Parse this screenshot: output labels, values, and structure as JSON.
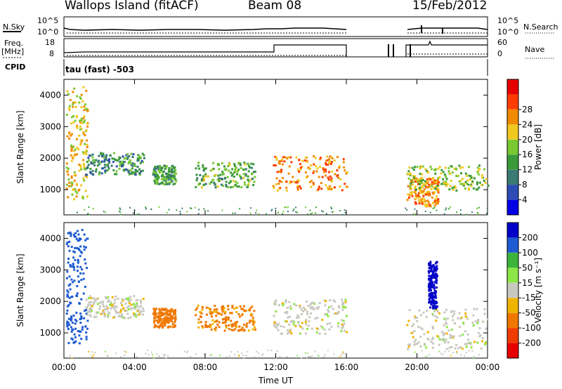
{
  "header": {
    "title": "Wallops Island (fitACF)",
    "beam": "Beam 08",
    "date": "15/Feb/2012"
  },
  "aux": {
    "nsky_label": "N.Sky",
    "nsearch_label": "N.Search",
    "freq_label": "Freq.",
    "freq_unit": "[MHz]",
    "nave_label": "Nave",
    "cpid_label": "CPID",
    "cpid_value": "tau (fast) -503",
    "noise_ticks": [
      "10^5",
      "10^0"
    ],
    "freq_ticks": [
      "18",
      "8"
    ],
    "nave_ticks": [
      "60",
      "0"
    ]
  },
  "chart_data": [
    {
      "type": "heatmap",
      "name": "power",
      "ylabel": "Slant Range [km]",
      "ylim": [
        200,
        4500
      ],
      "yticks": [
        1000,
        2000,
        3000,
        4000
      ],
      "colorbar": {
        "label": "Power [dB]",
        "ticks": [
          "4",
          "8",
          "12",
          "16",
          "20",
          "24",
          "28"
        ],
        "colors": [
          "#0000e6",
          "#2d4cb5",
          "#3a7a73",
          "#3a9a3a",
          "#7ac832",
          "#f0c820",
          "#f08a00",
          "#ff3c00",
          "#e60000"
        ]
      },
      "regions": [
        {
          "t0": 0.1,
          "t1": 1.3,
          "r0": 700,
          "r1": 4300,
          "value": "22"
        },
        {
          "t0": 1.2,
          "t1": 4.5,
          "r0": 1500,
          "r1": 2200,
          "value": "12"
        },
        {
          "t0": 5.0,
          "t1": 6.3,
          "r0": 1200,
          "r1": 1800,
          "value": "14"
        },
        {
          "t0": 7.4,
          "t1": 10.8,
          "r0": 1100,
          "r1": 1900,
          "value": "16"
        },
        {
          "t0": 11.8,
          "t1": 16.0,
          "r0": 1000,
          "r1": 2100,
          "value": "26"
        },
        {
          "t0": 19.4,
          "t1": 21.2,
          "r0": 500,
          "r1": 1400,
          "value": "26"
        },
        {
          "t0": 19.4,
          "t1": 24.0,
          "r0": 1000,
          "r1": 1800,
          "value": "18"
        }
      ]
    },
    {
      "type": "heatmap",
      "name": "velocity",
      "xlabel": "Time UT",
      "ylabel": "Slant Range [km]",
      "ylim": [
        200,
        4500
      ],
      "yticks": [
        1000,
        2000,
        3000,
        4000
      ],
      "xlim": [
        0,
        24
      ],
      "xticks": [
        "00:00",
        "04:00",
        "08:00",
        "12:00",
        "16:00",
        "20:00",
        "00:00"
      ],
      "colorbar": {
        "label": "Velocity [m s⁻¹]",
        "ticks": [
          "200",
          "100",
          "50",
          "15",
          "-15",
          "-50",
          "-100",
          "-200"
        ],
        "colors": [
          "#0000c8",
          "#1e5ad2",
          "#3cb43c",
          "#8ce646",
          "#c8c8c0",
          "#f0b400",
          "#f07800",
          "#f03c00",
          "#e60000"
        ]
      },
      "regions": [
        {
          "t0": 0.1,
          "t1": 1.3,
          "r0": 700,
          "r1": 4300,
          "value": "100"
        },
        {
          "t0": 1.2,
          "t1": 4.5,
          "r0": 1500,
          "r1": 2200,
          "value": "0"
        },
        {
          "t0": 5.0,
          "t1": 6.3,
          "r0": 1200,
          "r1": 1800,
          "value": "-80"
        },
        {
          "t0": 7.4,
          "t1": 10.8,
          "r0": 1100,
          "r1": 1900,
          "value": "-60"
        },
        {
          "t0": 11.8,
          "t1": 16.0,
          "r0": 1000,
          "r1": 2100,
          "value": "0"
        },
        {
          "t0": 19.4,
          "t1": 24.0,
          "r0": 500,
          "r1": 1800,
          "value": "0"
        },
        {
          "t0": 20.6,
          "t1": 21.1,
          "r0": 1800,
          "r1": 3300,
          "value": "200"
        }
      ]
    }
  ]
}
